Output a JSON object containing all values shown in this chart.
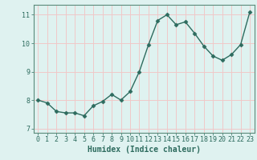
{
  "x": [
    0,
    1,
    2,
    3,
    4,
    5,
    6,
    7,
    8,
    9,
    10,
    11,
    12,
    13,
    14,
    15,
    16,
    17,
    18,
    19,
    20,
    21,
    22,
    23
  ],
  "y": [
    8.0,
    7.9,
    7.6,
    7.55,
    7.55,
    7.45,
    7.8,
    7.95,
    8.2,
    8.0,
    8.3,
    9.0,
    9.95,
    10.8,
    11.0,
    10.65,
    10.75,
    10.35,
    9.9,
    9.55,
    9.4,
    9.6,
    9.95,
    11.1
  ],
  "line_color": "#2d6b5e",
  "marker": "D",
  "markersize": 2.5,
  "linewidth": 1.0,
  "xlabel": "Humidex (Indice chaleur)",
  "xlim": [
    -0.5,
    23.5
  ],
  "ylim": [
    6.85,
    11.35
  ],
  "yticks": [
    7,
    8,
    9,
    10,
    11
  ],
  "xticks": [
    0,
    1,
    2,
    3,
    4,
    5,
    6,
    7,
    8,
    9,
    10,
    11,
    12,
    13,
    14,
    15,
    16,
    17,
    18,
    19,
    20,
    21,
    22,
    23
  ],
  "bg_color": "#dff2f0",
  "grid_color": "#f0c8c8",
  "spine_color": "#5a8a7a",
  "tick_color": "#2d6b5e",
  "label_color": "#2d6b5e",
  "xlabel_fontsize": 7,
  "tick_fontsize": 6
}
